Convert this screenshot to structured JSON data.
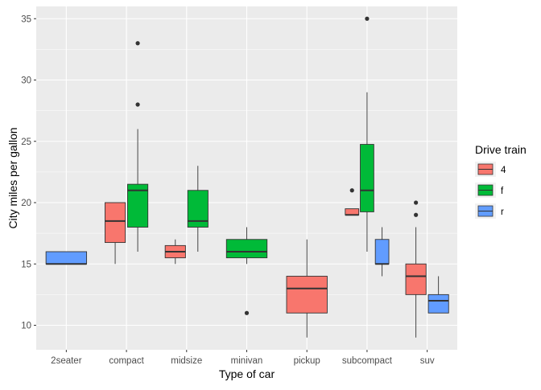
{
  "chart_data": {
    "type": "boxplot",
    "xlabel": "Type of car",
    "ylabel": "City miles per gallon",
    "ylim": [
      8,
      36
    ],
    "yticks": [
      10,
      15,
      20,
      25,
      30,
      35
    ],
    "categories": [
      "2seater",
      "compact",
      "midsize",
      "minivan",
      "pickup",
      "subcompact",
      "suv"
    ],
    "legend": {
      "title": "Drive train",
      "placement": "right",
      "entries": [
        {
          "name": "4",
          "color": "#F8766D"
        },
        {
          "name": "f",
          "color": "#00BA38"
        },
        {
          "name": "r",
          "color": "#619CFF"
        }
      ]
    },
    "groups": [
      {
        "category": "2seater",
        "boxes": [
          {
            "drv": "r",
            "min": 15,
            "q1": 15,
            "median": 15,
            "q3": 16,
            "max": 16,
            "outliers": []
          }
        ]
      },
      {
        "category": "compact",
        "boxes": [
          {
            "drv": "4",
            "min": 15,
            "q1": 16.75,
            "median": 18.5,
            "q3": 20,
            "max": 20,
            "outliers": []
          },
          {
            "drv": "f",
            "min": 16,
            "q1": 18,
            "median": 21,
            "q3": 21.5,
            "max": 26,
            "outliers": [
              28,
              33
            ]
          }
        ]
      },
      {
        "category": "midsize",
        "boxes": [
          {
            "drv": "4",
            "min": 15,
            "q1": 15.5,
            "median": 16,
            "q3": 16.5,
            "max": 17,
            "outliers": []
          },
          {
            "drv": "f",
            "min": 16,
            "q1": 18,
            "median": 18.5,
            "q3": 21,
            "max": 23,
            "outliers": []
          }
        ]
      },
      {
        "category": "minivan",
        "boxes": [
          {
            "drv": "f",
            "min": 15,
            "q1": 15.5,
            "median": 16,
            "q3": 17,
            "max": 18,
            "outliers": [
              11
            ]
          }
        ]
      },
      {
        "category": "pickup",
        "boxes": [
          {
            "drv": "4",
            "min": 9,
            "q1": 11,
            "median": 13,
            "q3": 14,
            "max": 17,
            "outliers": []
          }
        ]
      },
      {
        "category": "subcompact",
        "boxes": [
          {
            "drv": "4",
            "min": 19,
            "q1": 19,
            "median": 19,
            "q3": 19.5,
            "max": 19.5,
            "outliers": [
              21
            ]
          },
          {
            "drv": "f",
            "min": 16,
            "q1": 19.25,
            "median": 21,
            "q3": 24.75,
            "max": 29,
            "outliers": [
              35
            ]
          },
          {
            "drv": "r",
            "min": 14,
            "q1": 15,
            "median": 15,
            "q3": 17,
            "max": 18,
            "outliers": []
          }
        ]
      },
      {
        "category": "suv",
        "boxes": [
          {
            "drv": "4",
            "min": 9,
            "q1": 12.5,
            "median": 14,
            "q3": 15,
            "max": 18,
            "outliers": [
              19,
              20
            ]
          },
          {
            "drv": "r",
            "min": 11,
            "q1": 11,
            "median": 12,
            "q3": 12.5,
            "max": 14,
            "outliers": []
          }
        ]
      }
    ]
  }
}
